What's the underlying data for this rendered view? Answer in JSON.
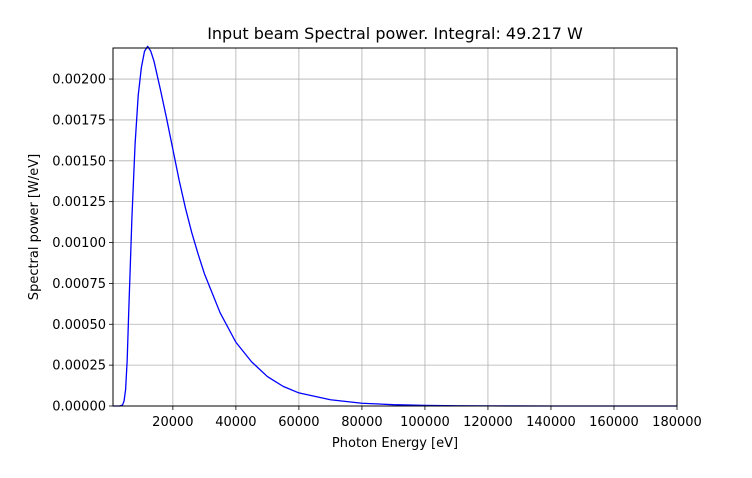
{
  "chart_data": {
    "type": "line",
    "title": "Input beam Spectral power. Integral: 49.217 W",
    "xlabel": "Photon Energy [eV]",
    "ylabel": "Spectral power [W/eV]",
    "xlim": [
      1000,
      180000
    ],
    "ylim": [
      0,
      0.00219
    ],
    "grid": true,
    "x_ticks": [
      20000,
      40000,
      60000,
      80000,
      100000,
      120000,
      140000,
      160000,
      180000
    ],
    "x_tick_labels": [
      "20000",
      "40000",
      "60000",
      "80000",
      "100000",
      "120000",
      "140000",
      "160000",
      "180000"
    ],
    "y_ticks": [
      0,
      0.00025,
      0.0005,
      0.00075,
      0.001,
      0.00125,
      0.0015,
      0.00175,
      0.002
    ],
    "y_tick_labels": [
      "0.00000",
      "0.00025",
      "0.00050",
      "0.00075",
      "0.00100",
      "0.00125",
      "0.00150",
      "0.00175",
      "0.00200"
    ],
    "series": [
      {
        "color": "#0000ff",
        "x": [
          1000,
          2000,
          3000,
          4000,
          4500,
          5000,
          5500,
          6000,
          7000,
          8000,
          9000,
          10000,
          11000,
          12000,
          13000,
          14000,
          16000,
          18000,
          20000,
          22000,
          24000,
          26000,
          28000,
          30000,
          35000,
          40000,
          45000,
          50000,
          55000,
          60000,
          70000,
          80000,
          90000,
          100000,
          110000,
          120000,
          140000,
          160000,
          180000
        ],
        "y": [
          0,
          0,
          0,
          5e-06,
          3e-05,
          0.0001,
          0.00028,
          0.00058,
          0.00115,
          0.0016,
          0.0019,
          0.00207,
          0.00217,
          0.0022,
          0.00217,
          0.00211,
          0.00194,
          0.00176,
          0.00157,
          0.00138,
          0.00121,
          0.00106,
          0.00093,
          0.00081,
          0.00057,
          0.00039,
          0.00027,
          0.00018,
          0.00012,
          8e-05,
          3.8e-05,
          1.7e-05,
          8e-06,
          3.5e-06,
          1.6e-06,
          7e-07,
          1e-07,
          2e-08,
          0
        ]
      }
    ]
  }
}
